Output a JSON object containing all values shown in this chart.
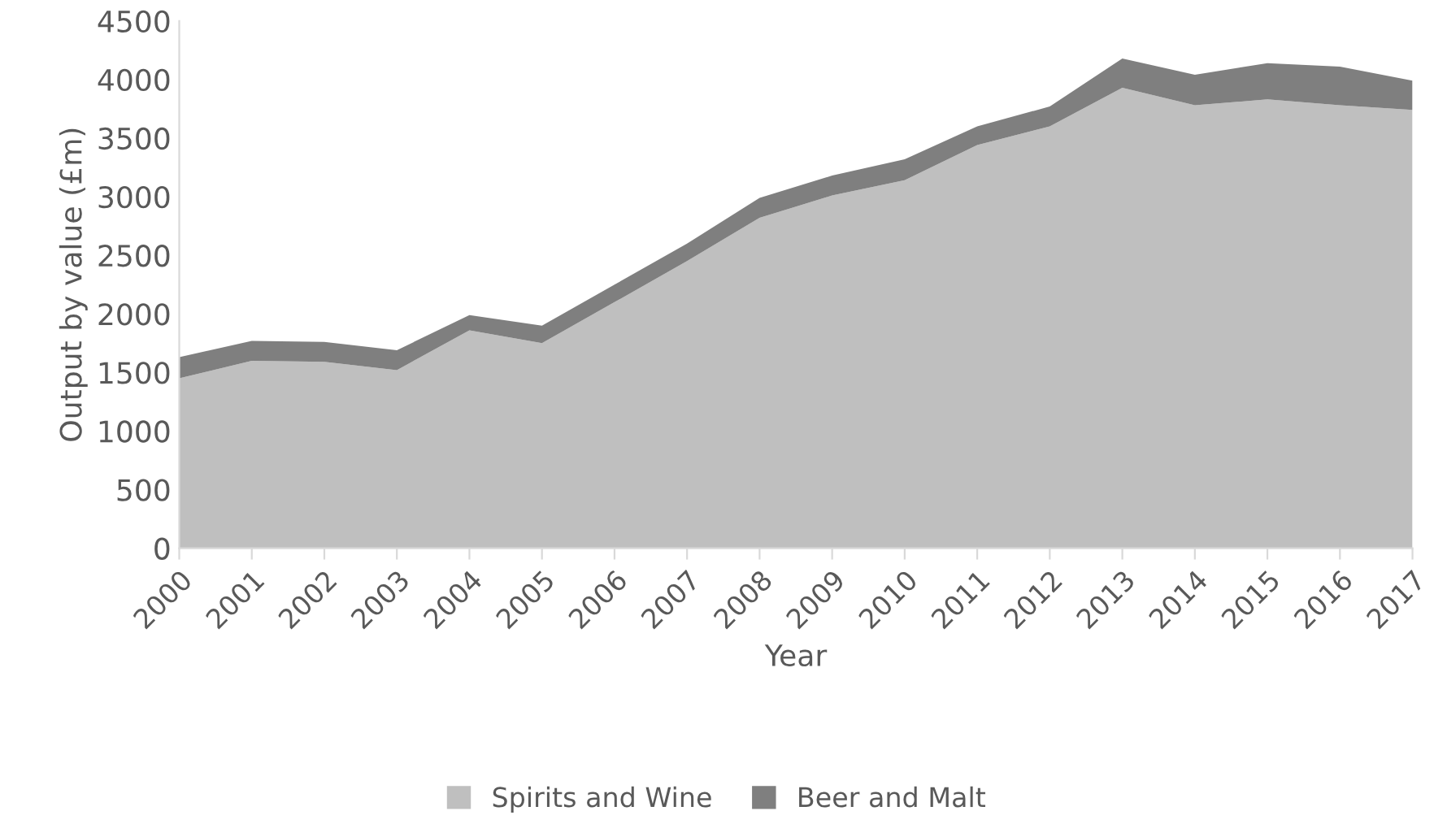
{
  "chart_data": {
    "type": "area",
    "stacked": true,
    "xlabel": "Year",
    "ylabel": "Output by value (£m)",
    "categories": [
      "2000",
      "2001",
      "2002",
      "2003",
      "2004",
      "2005",
      "2006",
      "2007",
      "2008",
      "2009",
      "2010",
      "2011",
      "2012",
      "2013",
      "2014",
      "2015",
      "2016",
      "2017"
    ],
    "series": [
      {
        "name": "Spirits and Wine",
        "color": "#bfbfbf",
        "values": [
          1450,
          1600,
          1590,
          1520,
          1860,
          1750,
          2100,
          2450,
          2820,
          3010,
          3140,
          3440,
          3600,
          3930,
          3780,
          3830,
          3780,
          3740
        ]
      },
      {
        "name": "Beer and Malt",
        "color": "#7f7f7f",
        "values": [
          180,
          170,
          170,
          170,
          130,
          150,
          150,
          150,
          170,
          170,
          180,
          160,
          170,
          250,
          260,
          310,
          330,
          250
        ]
      }
    ],
    "ylim": [
      0,
      4500
    ],
    "yticks": [
      0,
      500,
      1000,
      1500,
      2000,
      2500,
      3000,
      3500,
      4000,
      4500
    ],
    "grid": false,
    "legend": "bottom"
  }
}
